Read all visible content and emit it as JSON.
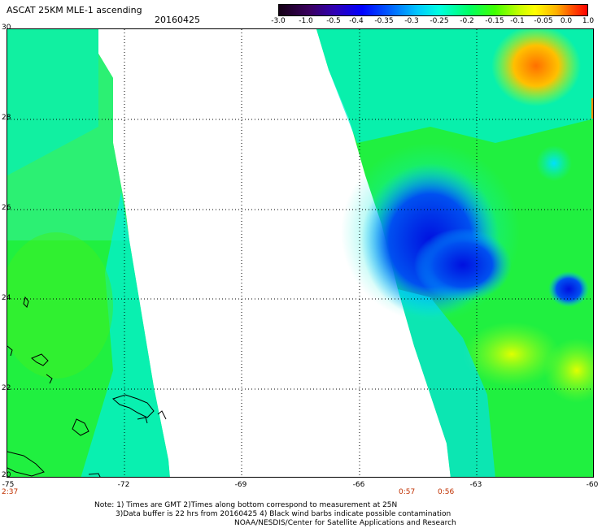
{
  "header": {
    "title": "ASCAT 25KM MLE-1 ascending",
    "date": "20160425"
  },
  "colorbar": {
    "labels": [
      "-3.0",
      "-1.0",
      "-0.5",
      "-0.4",
      "-0.35",
      "-0.3",
      "-0.25",
      "-0.2",
      "-0.15",
      "-0.1",
      "-0.05",
      "0.0",
      "1.0"
    ]
  },
  "axes": {
    "lat_labels": [
      "30",
      "28",
      "26",
      "24",
      "22",
      "20"
    ],
    "lon_labels": [
      "-75",
      "-72",
      "-69",
      "-66",
      "-63",
      "-60"
    ]
  },
  "times": {
    "left": "2:37",
    "mid1": "0:57",
    "mid2": "0:56"
  },
  "notes": {
    "line1": "Note: 1) Times are GMT 2)Times along bottom correspond to measurement at 25N",
    "line2": "3)Data buffer is 22 hrs from 20160425 4) Black wind barbs indicate possible contamination",
    "line3": "NOAA/NESDIS/Center for Satellite Applications and Research"
  },
  "colors": {
    "low_blue": "#0030e0",
    "mid_cyan": "#00f0d0",
    "green": "#20f040",
    "orange": "#ff9000"
  },
  "icons": {
    "land": "coastline-outline"
  }
}
